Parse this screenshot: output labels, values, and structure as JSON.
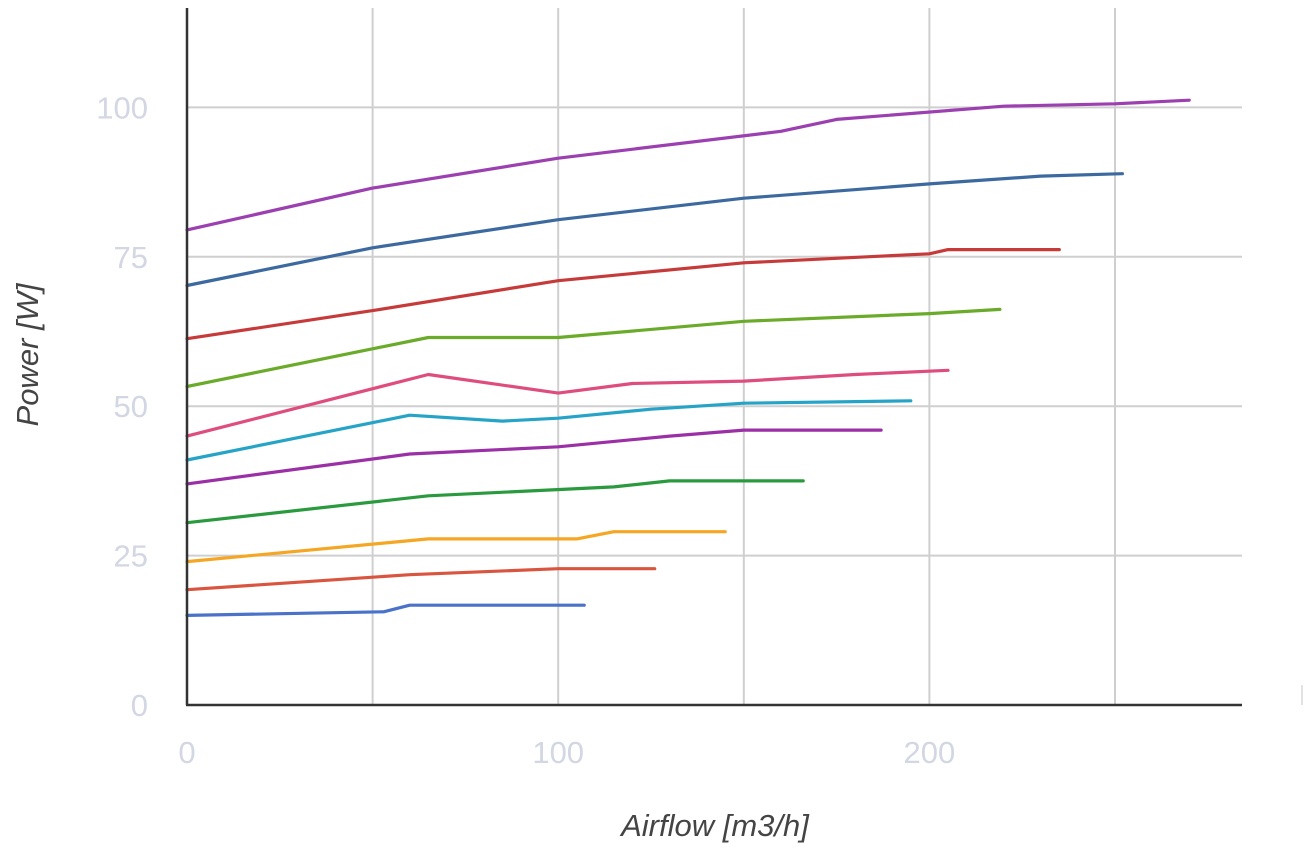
{
  "chart_data": {
    "type": "line",
    "title": "",
    "xlabel": "Airflow [m3/h]",
    "ylabel": "Power [W]",
    "xlim": [
      0,
      285
    ],
    "ylim": [
      0,
      112
    ],
    "x_ticks": [
      0,
      100,
      200
    ],
    "y_ticks": [
      0,
      25,
      50,
      75,
      100
    ],
    "x_gridlines": [
      50,
      100,
      150,
      200,
      250
    ],
    "y_gridlines": [
      25,
      50,
      75,
      100
    ],
    "legend": "none",
    "series": [
      {
        "color": "#4a72c9",
        "points": [
          [
            0,
            15
          ],
          [
            53,
            15.6
          ],
          [
            60,
            16.7
          ],
          [
            107,
            16.7
          ]
        ]
      },
      {
        "color": "#d9553f",
        "points": [
          [
            0,
            19.3
          ],
          [
            60,
            21.8
          ],
          [
            100,
            22.8
          ],
          [
            126,
            22.8
          ]
        ]
      },
      {
        "color": "#f5a623",
        "points": [
          [
            0,
            24
          ],
          [
            65,
            27.8
          ],
          [
            105,
            27.8
          ],
          [
            115,
            29
          ],
          [
            145,
            29
          ]
        ]
      },
      {
        "color": "#2a9a3e",
        "points": [
          [
            0,
            30.5
          ],
          [
            65,
            35
          ],
          [
            115,
            36.5
          ],
          [
            130,
            37.5
          ],
          [
            166,
            37.5
          ]
        ]
      },
      {
        "color": "#9b2fa6",
        "points": [
          [
            0,
            37
          ],
          [
            60,
            42
          ],
          [
            100,
            43.2
          ],
          [
            130,
            45
          ],
          [
            150,
            46
          ],
          [
            187,
            46
          ]
        ]
      },
      {
        "color": "#26a4c7",
        "points": [
          [
            0,
            41
          ],
          [
            60,
            48.5
          ],
          [
            85,
            47.5
          ],
          [
            100,
            48
          ],
          [
            125,
            49.5
          ],
          [
            150,
            50.5
          ],
          [
            195,
            50.9
          ]
        ]
      },
      {
        "color": "#de4d7d",
        "points": [
          [
            0,
            45
          ],
          [
            65,
            55.3
          ],
          [
            100,
            52.2
          ],
          [
            120,
            53.8
          ],
          [
            150,
            54.2
          ],
          [
            180,
            55.3
          ],
          [
            205,
            56
          ]
        ]
      },
      {
        "color": "#6aab2a",
        "points": [
          [
            0,
            53.3
          ],
          [
            65,
            61.5
          ],
          [
            100,
            61.5
          ],
          [
            150,
            64.2
          ],
          [
            200,
            65.5
          ],
          [
            219,
            66.2
          ]
        ]
      },
      {
        "color": "#c73a3a",
        "points": [
          [
            0,
            61.3
          ],
          [
            50,
            66
          ],
          [
            100,
            71
          ],
          [
            150,
            74
          ],
          [
            200,
            75.5
          ],
          [
            205,
            76.2
          ],
          [
            235,
            76.2
          ]
        ]
      },
      {
        "color": "#3c6aa0",
        "points": [
          [
            0,
            70.2
          ],
          [
            50,
            76.5
          ],
          [
            100,
            81.2
          ],
          [
            150,
            84.8
          ],
          [
            200,
            87.2
          ],
          [
            230,
            88.5
          ],
          [
            252,
            88.9
          ]
        ]
      },
      {
        "color": "#9c3fb0",
        "points": [
          [
            0,
            79.5
          ],
          [
            50,
            86.5
          ],
          [
            100,
            91.5
          ],
          [
            160,
            96
          ],
          [
            175,
            98
          ],
          [
            220,
            100.2
          ],
          [
            250,
            100.6
          ],
          [
            270,
            101.2
          ]
        ]
      }
    ]
  }
}
